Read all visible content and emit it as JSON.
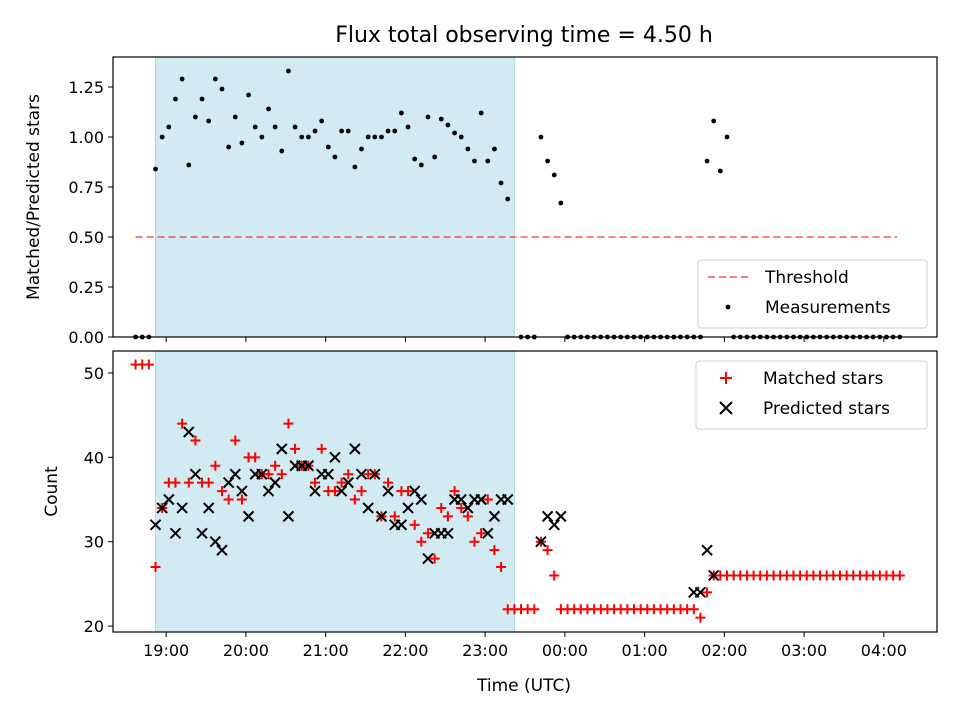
{
  "figure": {
    "title": "Flux total observing time = 4.50 h",
    "xlabel": "Time (UTC)"
  },
  "colors": {
    "shade": "#add8e6",
    "threshold": "#ff0000",
    "measurement": "#000000",
    "matched": "#ff0000",
    "predicted": "#000000"
  },
  "chart_data": [
    {
      "type": "scatter",
      "ylabel": "Matched/Predicted stars",
      "xlim": [
        "18:20",
        "04:40"
      ],
      "ylim": [
        0,
        1.4
      ],
      "yticks": [
        0.0,
        0.25,
        0.5,
        0.75,
        1.0,
        1.25
      ],
      "ytick_labels": [
        "0.00",
        "0.25",
        "0.50",
        "0.75",
        "1.00",
        "1.25"
      ],
      "shaded_span": [
        "18:52",
        "23:22"
      ],
      "threshold": {
        "name": "Threshold",
        "y": 0.5,
        "x": [
          "18:37",
          "04:10"
        ]
      },
      "legend": {
        "position": "lower right",
        "entries": [
          "Threshold",
          "Measurements"
        ]
      },
      "series": [
        {
          "name": "Measurements",
          "x": [
            "18:37",
            "18:42",
            "18:47",
            "18:52",
            "18:57",
            "19:02",
            "19:07",
            "19:12",
            "19:17",
            "19:22",
            "19:27",
            "19:32",
            "19:37",
            "19:42",
            "19:47",
            "19:52",
            "19:57",
            "20:02",
            "20:07",
            "20:12",
            "20:17",
            "20:22",
            "20:27",
            "20:32",
            "20:37",
            "20:42",
            "20:47",
            "20:52",
            "20:57",
            "21:02",
            "21:07",
            "21:12",
            "21:17",
            "21:22",
            "21:27",
            "21:32",
            "21:37",
            "21:42",
            "21:47",
            "21:52",
            "21:57",
            "22:02",
            "22:07",
            "22:12",
            "22:17",
            "22:22",
            "22:27",
            "22:32",
            "22:37",
            "22:42",
            "22:47",
            "22:52",
            "22:57",
            "23:02",
            "23:07",
            "23:12",
            "23:17",
            "23:22",
            "23:27",
            "23:32",
            "23:37",
            "23:42",
            "23:47",
            "23:52",
            "23:57",
            "00:02",
            "00:07",
            "00:12",
            "00:17",
            "00:22",
            "00:27",
            "00:32",
            "00:37",
            "00:42",
            "00:47",
            "00:52",
            "00:57",
            "01:02",
            "01:07",
            "01:12",
            "01:17",
            "01:22",
            "01:27",
            "01:32",
            "01:37",
            "01:42",
            "01:47",
            "01:52",
            "01:57",
            "02:02",
            "02:07",
            "02:12",
            "02:17",
            "02:22",
            "02:27",
            "02:32",
            "02:37",
            "02:42",
            "02:47",
            "02:52",
            "02:57",
            "03:02",
            "03:07",
            "03:12",
            "03:17",
            "03:22",
            "03:27",
            "03:32",
            "03:37",
            "03:42",
            "03:47",
            "03:52",
            "03:57",
            "04:02",
            "04:07",
            "04:12"
          ],
          "y": [
            0,
            0,
            0,
            0.84,
            1.0,
            1.05,
            1.19,
            1.29,
            0.86,
            1.1,
            1.19,
            1.08,
            1.29,
            1.24,
            0.95,
            1.1,
            0.97,
            1.21,
            1.05,
            1.0,
            1.14,
            1.05,
            0.93,
            1.33,
            1.05,
            1.0,
            1.0,
            1.03,
            1.08,
            0.95,
            0.9,
            1.03,
            1.03,
            0.85,
            0.94,
            1.0,
            1.0,
            1.0,
            1.03,
            1.03,
            1.12,
            1.05,
            0.89,
            0.86,
            1.1,
            0.9,
            1.09,
            1.06,
            1.02,
            1.0,
            0.94,
            0.88,
            1.12,
            0.88,
            0.94,
            0.77,
            0.69,
            null,
            0,
            0,
            0,
            1.0,
            0.88,
            0.81,
            0.67,
            0,
            0,
            0,
            0,
            0,
            0,
            0,
            0,
            0,
            0,
            0,
            0,
            0,
            0,
            0,
            0,
            0,
            0,
            0,
            0,
            0,
            0.88,
            1.08,
            0.83,
            1.0,
            0,
            0,
            0,
            0,
            0,
            0,
            0,
            0,
            0,
            0,
            0,
            0,
            0,
            0,
            0,
            0,
            0,
            0,
            0,
            0,
            0,
            0,
            0,
            0,
            0,
            0
          ]
        }
      ]
    },
    {
      "type": "scatter",
      "ylabel": "Count",
      "xlim": [
        "18:20",
        "04:40"
      ],
      "ylim": [
        19.3,
        52.6
      ],
      "yticks": [
        20,
        30,
        40,
        50
      ],
      "ytick_labels": [
        "20",
        "30",
        "40",
        "50"
      ],
      "xticks": [
        "19:00",
        "20:00",
        "21:00",
        "22:00",
        "23:00",
        "00:00",
        "01:00",
        "02:00",
        "03:00",
        "04:00"
      ],
      "xtick_labels": [
        "19:00",
        "20:00",
        "21:00",
        "22:00",
        "23:00",
        "00:00",
        "01:00",
        "02:00",
        "03:00",
        "04:00"
      ],
      "shaded_span": [
        "18:52",
        "23:22"
      ],
      "legend": {
        "position": "upper right",
        "entries": [
          "Matched stars",
          "Predicted stars"
        ]
      },
      "series": [
        {
          "name": "Matched stars",
          "marker": "plus",
          "x": [
            "18:37",
            "18:42",
            "18:47",
            "18:52",
            "18:57",
            "19:02",
            "19:07",
            "19:12",
            "19:17",
            "19:22",
            "19:27",
            "19:32",
            "19:37",
            "19:42",
            "19:47",
            "19:52",
            "19:57",
            "20:02",
            "20:07",
            "20:12",
            "20:17",
            "20:22",
            "20:27",
            "20:32",
            "20:37",
            "20:42",
            "20:47",
            "20:52",
            "20:57",
            "21:02",
            "21:07",
            "21:12",
            "21:17",
            "21:22",
            "21:27",
            "21:32",
            "21:37",
            "21:42",
            "21:47",
            "21:52",
            "21:57",
            "22:02",
            "22:07",
            "22:12",
            "22:17",
            "22:22",
            "22:27",
            "22:32",
            "22:37",
            "22:42",
            "22:47",
            "22:52",
            "22:57",
            "23:02",
            "23:07",
            "23:12",
            "23:17",
            "23:22",
            "23:27",
            "23:32",
            "23:37",
            "23:42",
            "23:47",
            "23:52",
            "23:57",
            "00:02",
            "00:07",
            "00:12",
            "00:17",
            "00:22",
            "00:27",
            "00:32",
            "00:37",
            "00:42",
            "00:47",
            "00:52",
            "00:57",
            "01:02",
            "01:07",
            "01:12",
            "01:17",
            "01:22",
            "01:27",
            "01:32",
            "01:37",
            "01:42",
            "01:47",
            "01:52",
            "01:57",
            "02:02",
            "02:07",
            "02:12",
            "02:17",
            "02:22",
            "02:27",
            "02:32",
            "02:37",
            "02:42",
            "02:47",
            "02:52",
            "02:57",
            "03:02",
            "03:07",
            "03:12",
            "03:17",
            "03:22",
            "03:27",
            "03:32",
            "03:37",
            "03:42",
            "03:47",
            "03:52",
            "03:57",
            "04:02",
            "04:07",
            "04:12"
          ],
          "y": [
            51,
            51,
            51,
            27,
            34,
            37,
            37,
            44,
            37,
            42,
            37,
            37,
            39,
            36,
            35,
            42,
            35,
            40,
            40,
            38,
            38,
            39,
            38,
            44,
            41,
            39,
            39,
            37,
            41,
            36,
            36,
            37,
            38,
            35,
            36,
            38,
            38,
            33,
            37,
            33,
            36,
            36,
            32,
            30,
            31,
            28,
            34,
            33,
            36,
            34,
            33,
            30,
            31,
            35,
            29,
            27,
            22,
            22,
            22,
            22,
            22,
            30,
            29,
            26,
            22,
            22,
            22,
            22,
            22,
            22,
            22,
            22,
            22,
            22,
            22,
            22,
            22,
            22,
            22,
            22,
            22,
            22,
            22,
            22,
            22,
            21,
            24,
            26,
            26,
            26,
            26,
            26,
            26,
            26,
            26,
            26,
            26,
            26,
            26,
            26,
            26,
            26,
            26,
            26,
            26,
            26,
            26,
            26,
            26,
            26,
            26,
            26,
            26,
            26,
            26,
            26
          ]
        },
        {
          "name": "Predicted stars",
          "marker": "x",
          "x": [
            "18:52",
            "18:57",
            "19:02",
            "19:07",
            "19:12",
            "19:17",
            "19:22",
            "19:27",
            "19:32",
            "19:37",
            "19:42",
            "19:47",
            "19:52",
            "19:57",
            "20:02",
            "20:07",
            "20:12",
            "20:17",
            "20:22",
            "20:27",
            "20:32",
            "20:37",
            "20:42",
            "20:47",
            "20:52",
            "20:57",
            "21:02",
            "21:07",
            "21:12",
            "21:17",
            "21:22",
            "21:27",
            "21:32",
            "21:37",
            "21:42",
            "21:47",
            "21:52",
            "21:57",
            "22:02",
            "22:07",
            "22:12",
            "22:17",
            "22:22",
            "22:27",
            "22:32",
            "22:37",
            "22:42",
            "22:47",
            "22:52",
            "22:57",
            "23:02",
            "23:07",
            "23:12",
            "23:17",
            "23:42",
            "23:47",
            "23:52",
            "23:57",
            "01:37",
            "01:42",
            "01:47",
            "01:52"
          ],
          "y": [
            32,
            34,
            35,
            31,
            34,
            43,
            38,
            31,
            34,
            30,
            29,
            37,
            38,
            36,
            33,
            38,
            38,
            36,
            37,
            41,
            33,
            39,
            39,
            39,
            36,
            38,
            38,
            40,
            36,
            37,
            41,
            38,
            34,
            38,
            33,
            36,
            32,
            32,
            34,
            36,
            35,
            28,
            31,
            31,
            31,
            35,
            35,
            34,
            35,
            35,
            31,
            33,
            35,
            35,
            30,
            33,
            32,
            33,
            24,
            24,
            29,
            26
          ]
        }
      ]
    }
  ]
}
